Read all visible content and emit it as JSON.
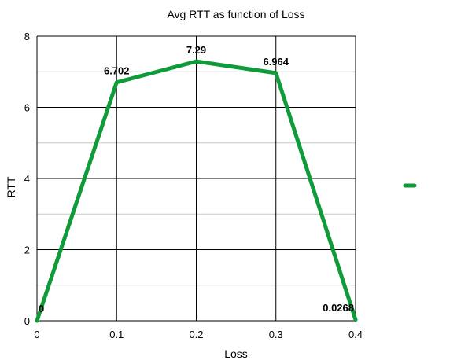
{
  "chart_data": {
    "type": "line",
    "title": "Avg RTT as function of Loss",
    "xlabel": "Loss",
    "ylabel": "RTT",
    "x": [
      0,
      0.1,
      0.2,
      0.3,
      0.4
    ],
    "x_ticks": [
      "0",
      "0.1",
      "0.2",
      "0.3",
      "0.4"
    ],
    "xlim": [
      0,
      0.4
    ],
    "ylim": [
      0,
      8
    ],
    "y_ticks": [
      "0",
      "2",
      "4",
      "6",
      "8"
    ],
    "grid": true,
    "legend": "right",
    "series": [
      {
        "name": "",
        "values": [
          0,
          6.702,
          7.29,
          6.964,
          0.0268
        ],
        "labels": [
          "0",
          "6.702",
          "7.29",
          "6.964",
          "0.0268"
        ],
        "color": "#109b3a"
      }
    ]
  }
}
